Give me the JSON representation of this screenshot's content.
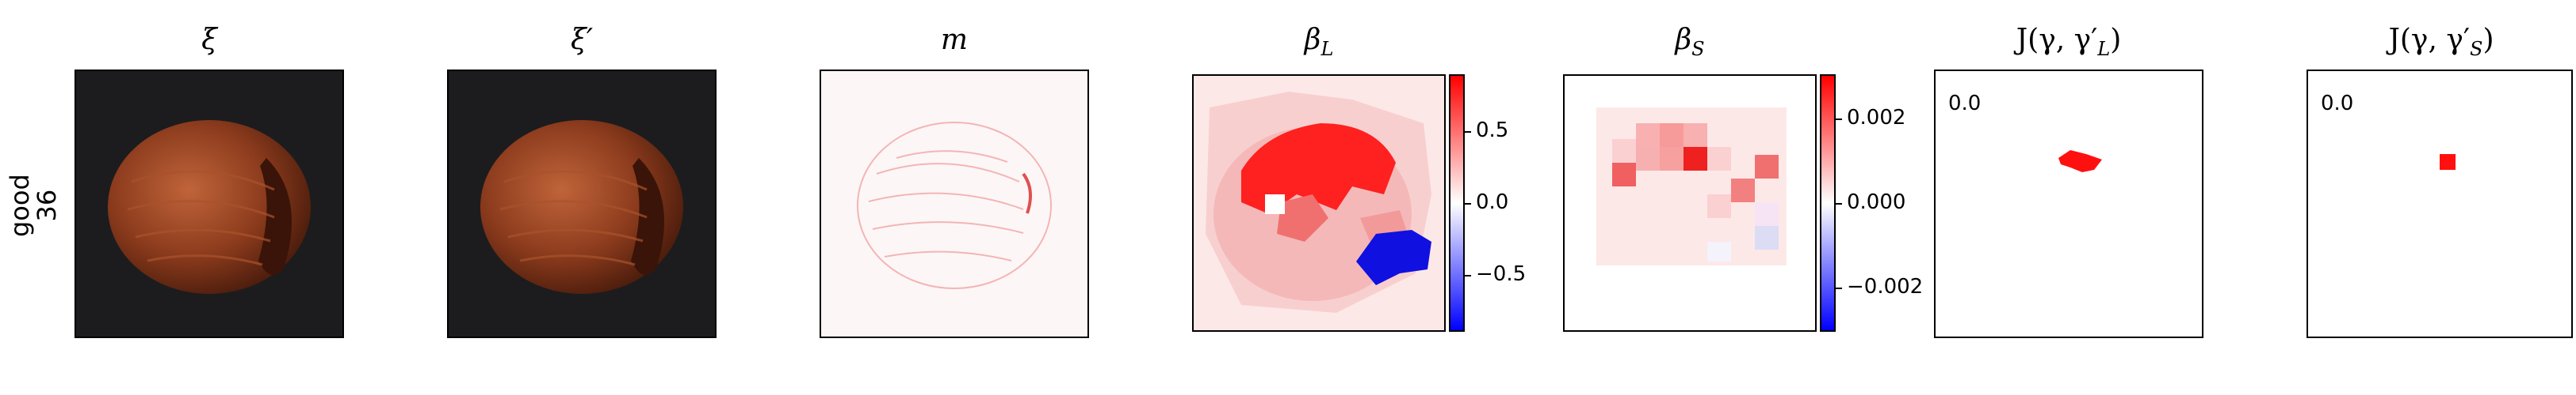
{
  "row_label": {
    "line1": "good",
    "line2": "36"
  },
  "titles": {
    "xi": "ξ",
    "xi_prime": "ξ′",
    "m": "m",
    "beta_L": "β",
    "beta_L_sub": "L",
    "beta_S": "β",
    "beta_S_sub": "S",
    "J_L": "J(γ, γ′",
    "J_L_sub": "L",
    "J_S": "J(γ, γ′",
    "J_S_sub": "S"
  },
  "colorbar_L": {
    "ticks": [
      "0.5",
      "0.0",
      "−0.5"
    ]
  },
  "colorbar_S": {
    "ticks": [
      "0.002",
      "0.000",
      "−0.002"
    ]
  },
  "scores": {
    "J_L": "0.0",
    "J_S": "0.0"
  },
  "colors": {
    "positive": "#ff0000",
    "negative": "#0000ff",
    "hazelnut": "#8a3a1c",
    "background_dark": "#1c1c1e"
  }
}
